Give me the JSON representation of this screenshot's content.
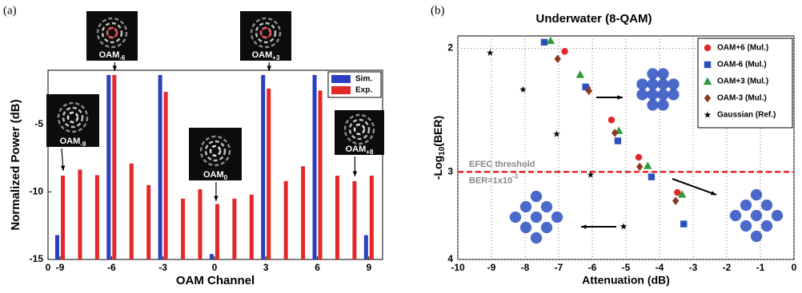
{
  "chart_data": [
    {
      "type": "bar",
      "panel_label": "(a)",
      "ylabel": "Normalized Power (dB)",
      "xlabel": "OAM Channel",
      "origin_label": "0",
      "x": [
        -9,
        -8,
        -7,
        -6,
        -5,
        -4,
        -3,
        -2,
        -1,
        0,
        1,
        2,
        3,
        4,
        5,
        6,
        7,
        8,
        9
      ],
      "series": [
        {
          "name": "Sim.",
          "color": "#2b3fbf",
          "values": [
            -13.2,
            null,
            null,
            -1.35,
            null,
            null,
            -1.35,
            null,
            null,
            -14.6,
            null,
            null,
            -1.35,
            null,
            null,
            -1.35,
            null,
            null,
            -13.2
          ]
        },
        {
          "name": "Exp.",
          "color": "#e3282a",
          "values": [
            -8.8,
            -8.35,
            -8.76,
            -1.35,
            -7.9,
            -9.5,
            -2.6,
            -10.5,
            -9.8,
            -10.9,
            -10.5,
            -10.2,
            -2.35,
            -9.2,
            -8.1,
            -2.5,
            -8.8,
            -9.2,
            -8.8
          ]
        }
      ],
      "xlim": [
        -9.7,
        9.8
      ],
      "ylim": [
        -15,
        -1
      ],
      "xticks": [
        -9,
        -6,
        -3,
        0,
        3,
        6,
        9
      ],
      "yticks": [
        -5,
        -10,
        -15
      ],
      "legend": "upper right",
      "insets": [
        {
          "text": "OAM",
          "sub": "-9"
        },
        {
          "text": "OAM",
          "sub": "-6"
        },
        {
          "text": "OAM",
          "sub": "0"
        },
        {
          "text": "OAM",
          "sub": "+3"
        },
        {
          "text": "OAM",
          "sub": "+8"
        }
      ]
    },
    {
      "type": "scatter",
      "panel_label": "(b)",
      "title": "Underwater (8-QAM)",
      "xlabel": "Attenuation (dB)",
      "ylabel": {
        "text": "-Log",
        "sub": "10",
        "after": "(BER)"
      },
      "xlim": [
        -10,
        0
      ],
      "ylim": [
        1.92,
        4
      ],
      "yscale": "log",
      "yreversed": true,
      "xticks": [
        -10,
        -9,
        -8,
        -7,
        -6,
        -5,
        -4,
        -3,
        -2,
        -1,
        0
      ],
      "yticks": [
        2,
        3,
        4
      ],
      "grid": true,
      "legend": "upper right",
      "threshold": {
        "value": 3,
        "color": "#e3282a",
        "label": "EFEC threshold",
        "sublabel": "BER=1x10",
        "sublabel_exp": "-3"
      },
      "series": [
        {
          "name": "OAM+6 (Mul.)",
          "color": "#e3282a",
          "marker": "circle",
          "x": [
            -6.82,
            -6.15,
            -5.43,
            -4.62,
            -3.47
          ],
          "values": [
            2.02,
            2.28,
            2.53,
            2.86,
            3.21
          ]
        },
        {
          "name": "OAM-6 (Mul.)",
          "color": "#2b4fbf",
          "marker": "square",
          "x": [
            -7.43,
            -6.2,
            -5.24,
            -4.24,
            -3.28
          ],
          "values": [
            1.96,
            2.27,
            2.71,
            3.05,
            3.56
          ]
        },
        {
          "name": "OAM+3 (Mul.)",
          "color": "#2e9a3a",
          "marker": "triangle",
          "x": [
            -7.24,
            -6.36,
            -5.21,
            -4.35,
            -3.33
          ],
          "values": [
            1.95,
            2.18,
            2.62,
            2.94,
            3.23
          ]
        },
        {
          "name": "OAM-3 (Mul.)",
          "color": "#8b3a1e",
          "marker": "diamond",
          "x": [
            -7.03,
            -6.1,
            -5.33,
            -4.59,
            -3.52
          ],
          "values": [
            2.07,
            2.3,
            2.64,
            2.95,
            3.3
          ]
        },
        {
          "name": "Gaussian (Ref.)",
          "color": "#000000",
          "marker": "star",
          "x": [
            -9.04,
            -8.06,
            -7.06,
            -6.05,
            -5.07
          ],
          "values": [
            2.03,
            2.29,
            2.65,
            3.03,
            3.59
          ]
        }
      ]
    }
  ]
}
